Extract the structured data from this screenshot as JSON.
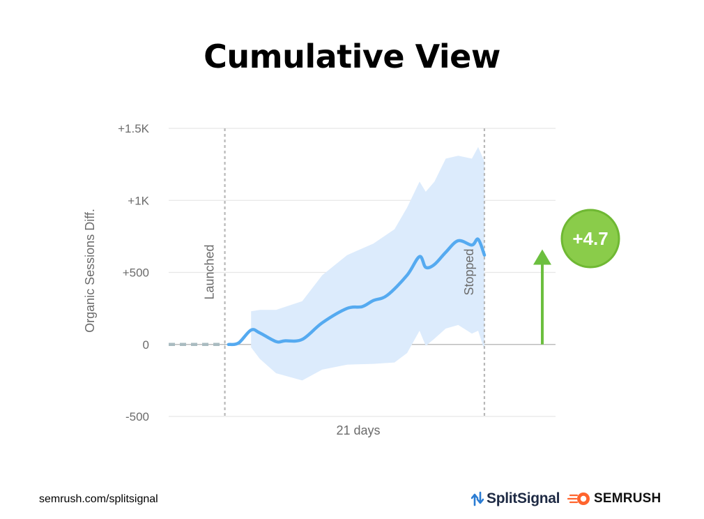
{
  "page": {
    "title": "Cumulative View",
    "footer_url": "semrush.com/splitsignal"
  },
  "brands": {
    "splitsignal": "SplitSignal",
    "semrush": "SEMRUSH"
  },
  "colors": {
    "line": "#55aaf0",
    "band": "#dcebfc",
    "grid": "#e6e6e6",
    "zero_line": "#bdbdbd",
    "marker_line": "#b8b8b8",
    "pre_launch": "#a9bbc0",
    "arrow": "#6cbf3f",
    "badge": "#8acc4a",
    "badge_border": "#6fb833"
  },
  "chart_data": {
    "type": "area",
    "title": "",
    "xlabel": "21 days",
    "ylabel": "Organic Sessions Diff.",
    "ylim": [
      -500,
      1500
    ],
    "y_ticks": [
      -500,
      0,
      500,
      1000,
      1500
    ],
    "y_tick_labels": [
      "-500",
      "0",
      "+500",
      "+1K",
      "+1.5K"
    ],
    "x_range_days": [
      -4.8,
      26.2
    ],
    "grid": "horizontal",
    "pre_launch": {
      "x": [
        -4.8,
        -0.3
      ],
      "y": [
        0,
        0
      ],
      "style": "dashed"
    },
    "series": [
      {
        "name": "",
        "role": "cumulative difference",
        "x": [
          0,
          0.8,
          1.8,
          2.5,
          3.8,
          4.5,
          5.9,
          7.5,
          9.5,
          10.7,
          11.6,
          12.7,
          14.3,
          15.3,
          15.8,
          16.5,
          17.4,
          18.4,
          19.5,
          20.0,
          20.5
        ],
        "y": [
          0,
          10,
          100,
          80,
          20,
          25,
          35,
          150,
          250,
          262,
          305,
          340,
          480,
          610,
          535,
          555,
          640,
          720,
          690,
          730,
          620
        ]
      }
    ],
    "band": {
      "name": "",
      "x": [
        1.8,
        2.5,
        3.8,
        5.9,
        7.5,
        9.5,
        11.6,
        13.3,
        14.3,
        15.3,
        15.8,
        16.5,
        17.4,
        18.4,
        19.5,
        20.0,
        20.5
      ],
      "upper": [
        230,
        240,
        240,
        300,
        480,
        620,
        700,
        800,
        950,
        1130,
        1060,
        1130,
        1290,
        1310,
        1290,
        1370,
        1270
      ],
      "lower": [
        -20,
        -100,
        -200,
        -250,
        -175,
        -140,
        -135,
        -125,
        -60,
        95,
        -10,
        40,
        110,
        135,
        75,
        95,
        -40
      ]
    },
    "markers": [
      {
        "label": "Launched",
        "x": -0.3
      },
      {
        "label": "Stopped",
        "x": 20.5
      }
    ],
    "annotation": {
      "text": "+4.7",
      "arrow_from": 0,
      "arrow_to": 660
    }
  }
}
